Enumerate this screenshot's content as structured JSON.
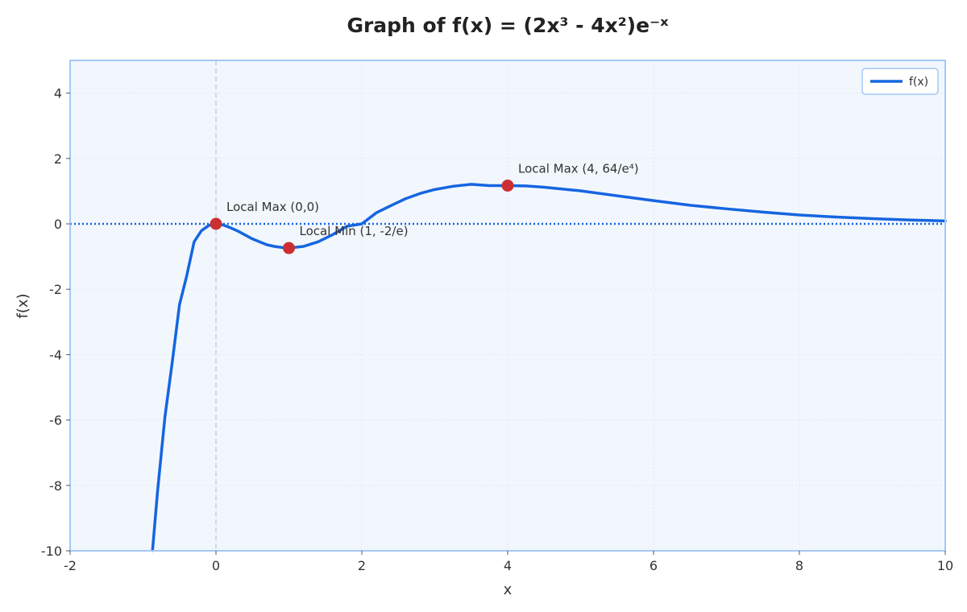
{
  "chart_data": {
    "type": "line",
    "title": "Graph of f(x) = (2x³ - 4x²)e⁻ˣ",
    "xlabel": "x",
    "ylabel": "f(x)",
    "xlim": [
      -2,
      10
    ],
    "ylim": [
      -10,
      5
    ],
    "x_ticks": [
      -2,
      0,
      2,
      4,
      6,
      8,
      10
    ],
    "y_ticks": [
      -10,
      -8,
      -6,
      -4,
      -2,
      0,
      2,
      4
    ],
    "grid": true,
    "legend_position": "top-right",
    "series": [
      {
        "name": "f(x)",
        "color": "#1565e0",
        "function": "(2x^3 - 4x^2) * e^(-x)",
        "x": [
          -0.87,
          -0.8,
          -0.7,
          -0.6,
          -0.5,
          -0.4,
          -0.3,
          -0.2,
          -0.1,
          0.0,
          0.1,
          0.2,
          0.3,
          0.4,
          0.5,
          0.6,
          0.7,
          0.8,
          0.9,
          1.0,
          1.2,
          1.4,
          1.6,
          1.8,
          2.0,
          2.2,
          2.4,
          2.6,
          2.8,
          3.0,
          3.25,
          3.5,
          3.75,
          4.0,
          4.25,
          4.5,
          5.0,
          5.5,
          6.0,
          6.5,
          7.0,
          7.5,
          8.0,
          8.5,
          9.0,
          9.5,
          10.0
        ],
        "y": [
          -9.99,
          -8.16,
          -5.91,
          -4.24,
          -2.47,
          -1.58,
          -0.55,
          -0.21,
          -0.05,
          0.0,
          -0.035,
          -0.12,
          -0.22,
          -0.34,
          -0.46,
          -0.55,
          -0.64,
          -0.69,
          -0.72,
          -0.74,
          -0.69,
          -0.55,
          -0.33,
          -0.07,
          0.0,
          0.34,
          0.56,
          0.77,
          0.93,
          1.05,
          1.15,
          1.21,
          1.17,
          1.17,
          1.16,
          1.12,
          1.01,
          0.86,
          0.71,
          0.57,
          0.46,
          0.36,
          0.27,
          0.21,
          0.16,
          0.12,
          0.09
        ]
      }
    ],
    "points": [
      {
        "x": 0,
        "y": 0,
        "label": "Local Max (0,0)",
        "color": "#cc2f33"
      },
      {
        "x": 1,
        "y": -0.74,
        "label": "Local Min (1, -2/e)",
        "color": "#cc2f33"
      },
      {
        "x": 4,
        "y": 1.17,
        "label": "Local Max (4, 64/e⁴)",
        "color": "#cc2f33"
      }
    ],
    "reference_lines": [
      {
        "axis": "y",
        "value": 0,
        "color": "#1565e0",
        "style": "dotted"
      },
      {
        "axis": "x",
        "value": 0,
        "color": "#b9d3f5",
        "style": "dashed"
      }
    ],
    "colors": {
      "plot_background": "#f2f7fd",
      "frame": "#a4c8f6",
      "grid": "#dde7f3"
    }
  }
}
